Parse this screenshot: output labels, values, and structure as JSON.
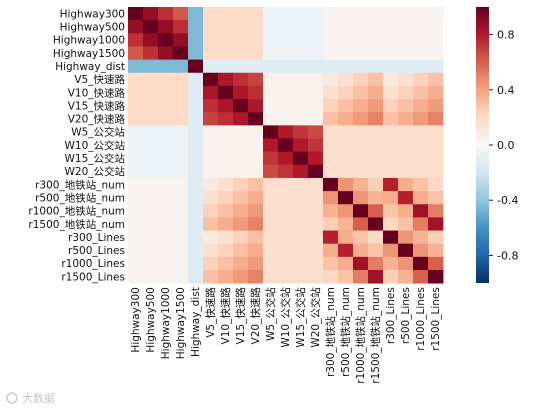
{
  "chart_data": {
    "type": "heatmap",
    "labels": [
      "Highway300",
      "Highway500",
      "Highway1000",
      "Highway1500",
      "Highway_dist",
      "V5_快速路",
      "V10_快速路",
      "V15_快速路",
      "V20_快速路",
      "W5_公交站",
      "W10_公交站",
      "W15_公交站",
      "W20_公交站",
      "r300_地铁站_num",
      "r500_地铁站_num",
      "r1000_地铁站_num",
      "r1500_地铁站_num",
      "r300_Lines",
      "r500_Lines",
      "r1000_Lines",
      "r1500_Lines"
    ],
    "colorbar": {
      "min": -1,
      "max": 1,
      "ticks": [
        0.8,
        0.4,
        0.0,
        -0.4,
        -0.8
      ],
      "tick_labels": [
        "0.8",
        "0.4",
        "0.0",
        "-0.4",
        "-0.8"
      ]
    },
    "colormap": "RdBu_r",
    "groups": [
      [
        0,
        1,
        2,
        3
      ],
      [
        4
      ],
      [
        5,
        6,
        7,
        8
      ],
      [
        9,
        10,
        11,
        12
      ],
      [
        13,
        14,
        15,
        16,
        17,
        18,
        19,
        20
      ]
    ]
  },
  "watermark": "大数据"
}
